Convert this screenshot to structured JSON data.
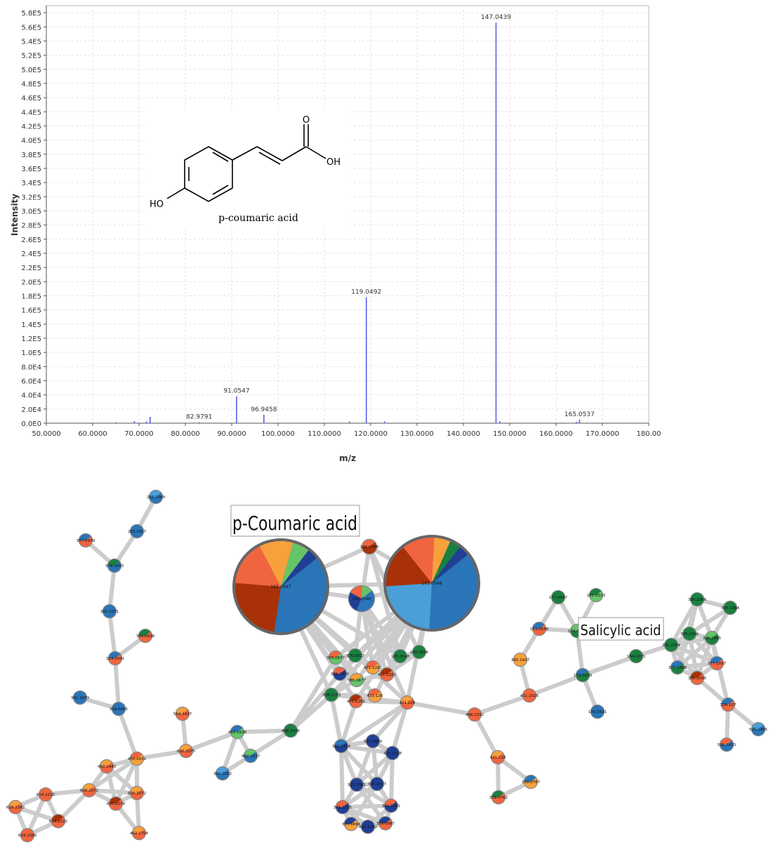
{
  "chart_data": {
    "type": "bar",
    "xlabel": "m/z",
    "ylabel": "Intensity",
    "xlim": [
      50,
      180
    ],
    "ylim": [
      0,
      590000
    ],
    "x_ticks": [
      "50.0000",
      "60.0000",
      "70.0000",
      "80.0000",
      "90.0000",
      "100.0000",
      "110.0000",
      "120.0000",
      "130.0000",
      "140.0000",
      "150.0000",
      "160.0000",
      "170.0000",
      "180.00"
    ],
    "y_ticks": [
      "0.0E0",
      "2.0E4",
      "4.0E4",
      "6.0E4",
      "8.0E4",
      "1.0E5",
      "1.2E5",
      "1.4E5",
      "1.6E5",
      "1.8E5",
      "2.0E5",
      "2.2E5",
      "2.4E5",
      "2.6E5",
      "2.8E5",
      "3.0E5",
      "3.2E5",
      "3.4E5",
      "3.6E5",
      "3.8E5",
      "4.0E5",
      "4.2E5",
      "4.4E5",
      "4.6E5",
      "4.8E5",
      "5.0E5",
      "5.2E5",
      "5.4E5",
      "5.6E5",
      "5.8E5"
    ],
    "grid": true,
    "color": "#5b5bf0",
    "peaks": [
      {
        "x": 65.0,
        "y": 1500
      },
      {
        "x": 69.0,
        "y": 3000
      },
      {
        "x": 71.6,
        "y": 2500
      },
      {
        "x": 72.4,
        "y": 9000
      },
      {
        "x": 82.9791,
        "y": 1500,
        "label": "82.9791"
      },
      {
        "x": 91.0547,
        "y": 38000,
        "label": "91.0547"
      },
      {
        "x": 96.9458,
        "y": 12000,
        "label": "96.9458"
      },
      {
        "x": 115.4,
        "y": 2500
      },
      {
        "x": 119.0492,
        "y": 178000,
        "label": "119.0492"
      },
      {
        "x": 123.0,
        "y": 2500
      },
      {
        "x": 147.0439,
        "y": 566000,
        "label": "147.0439"
      },
      {
        "x": 147.9,
        "y": 2500
      },
      {
        "x": 164.4,
        "y": 2000
      },
      {
        "x": 165.0537,
        "y": 5000,
        "label": "165.0537"
      }
    ]
  },
  "structure": {
    "name": "p-coumaric acid",
    "atom_o": "O",
    "atom_oh": "OH",
    "atom_ho": "HO"
  },
  "network": {
    "callouts": [
      {
        "text": "p-Coumaric acid"
      },
      {
        "text": "Salicylic acid"
      }
    ],
    "colors": {
      "orange_red": "#f0653f",
      "orange": "#f7a03c",
      "dark_red": "#a83107",
      "blue": "#2a74b8",
      "dark_blue": "#1f3f94",
      "light_blue": "#4a9fd8",
      "green": "#1a8040",
      "light_green": "#65c468"
    },
    "node_labels": [
      "283.1069",
      "283.1017",
      "357.0939",
      "374.1483",
      "361.1071",
      "339.0938",
      "314.1041",
      "361.1073",
      "309.0955",
      "564.3427",
      "462.1638",
      "600.2075",
      "482.1637",
      "468.1936",
      "361.1022",
      "450.1631",
      "450.1443",
      "600.2072",
      "600.2074",
      "600.2072",
      "614.2220",
      "614.2222",
      "628.2243",
      "629.2380",
      "462.1704",
      "165.0547",
      "165.0548",
      "165.0548",
      "165.0548",
      "305.0827",
      "303.0677",
      "165.0548",
      "165.0596",
      "421.1281",
      "385.1076",
      "421.1281",
      "385.0677",
      "378.1133",
      "421.126",
      "421.1281",
      "421.128",
      "341.1234",
      "325.0959",
      "325.1028",
      "325.1381",
      "325.1027",
      "341.1235",
      "341.1241",
      "395.0694",
      "341.1242",
      "339.0687",
      "468.1332",
      "421.128",
      "339.0787",
      "339.0762",
      "177.0547",
      "181.0523",
      "153.0548",
      "179.0555",
      "395.1427",
      "411.1026",
      "179.0539",
      "170.0531",
      "164.1071",
      "395.2066",
      "395.1484",
      "395.2096",
      "395.2094",
      "395.1465",
      "377.1598",
      "377.1097",
      "395.2095",
      "326.107",
      "595.1465",
      "595.1433",
      "596.1474"
    ]
  }
}
